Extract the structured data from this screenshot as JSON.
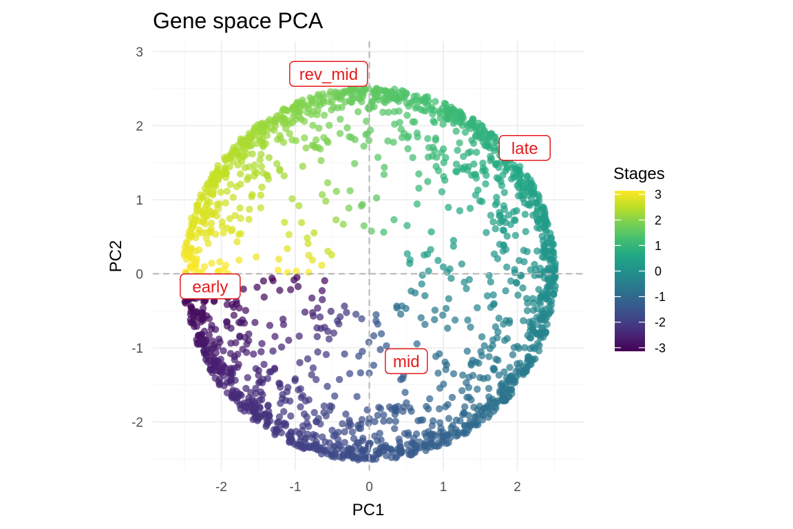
{
  "chart_data": {
    "type": "scatter",
    "title": "Gene space PCA",
    "xlabel": "PC1",
    "ylabel": "PC2",
    "xlim": [
      -2.9,
      2.9
    ],
    "ylim": [
      -2.6,
      3.1
    ],
    "x_ticks": [
      -2,
      -1,
      0,
      1,
      2
    ],
    "y_ticks": [
      -2,
      -1,
      0,
      1,
      2,
      3
    ],
    "grid": true,
    "reference_lines": {
      "x": 0,
      "y": 0,
      "style": "dashed"
    },
    "color_variable": "stage (angle around origin, radians)",
    "legend": {
      "title": "Stages",
      "placement": "right",
      "type": "colorbar",
      "palette": "viridis",
      "range": [
        -3.14,
        3.14
      ],
      "ticks": [
        3,
        2,
        1,
        0,
        -1,
        -2,
        -3
      ]
    },
    "annotations": [
      {
        "label": "rev_mid",
        "x": -0.55,
        "y": 2.7
      },
      {
        "label": "late",
        "x": 2.1,
        "y": 1.7
      },
      {
        "label": "early",
        "x": -2.15,
        "y": -0.17
      },
      {
        "label": "mid",
        "x": 0.5,
        "y": -1.18
      }
    ],
    "point_count_estimate": 2000,
    "distribution": "points on ring radius ~2.45 (thick band), sparse interior, centered at origin; color = atan2 angle"
  },
  "colors": {
    "annotation": "#e41a1c",
    "grid_major": "#ebebeb",
    "grid_minor": "#f5f5f5",
    "refline": "#b3b3b3"
  }
}
